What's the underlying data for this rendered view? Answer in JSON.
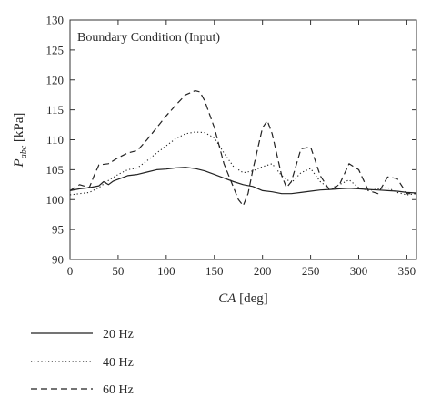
{
  "chart_data": {
    "type": "line",
    "annotation": "Boundary Condition (Input)",
    "xlabel": "CA [deg]",
    "xlabel_italic": "CA",
    "xlabel_unit": " [deg]",
    "ylabel": "P_abc [kPa]",
    "ylabel_main": "P",
    "ylabel_sub": "abc",
    "ylabel_unit": " [kPa]",
    "xlim": [
      0,
      360
    ],
    "ylim": [
      90,
      130
    ],
    "xticks": [
      "0",
      "50",
      "100",
      "150",
      "200",
      "250",
      "300",
      "350"
    ],
    "xtick_values": [
      0,
      50,
      100,
      150,
      200,
      250,
      300,
      350
    ],
    "yticks": [
      "90",
      "95",
      "100",
      "105",
      "110",
      "115",
      "120",
      "125",
      "130"
    ],
    "ytick_values": [
      90,
      95,
      100,
      105,
      110,
      115,
      120,
      125,
      130
    ],
    "grid": false,
    "legend_position": "below plot",
    "series": [
      {
        "name": "20 Hz",
        "style": "solid",
        "x": [
          0,
          10,
          20,
          30,
          35,
          40,
          45,
          50,
          55,
          60,
          70,
          80,
          90,
          100,
          110,
          120,
          130,
          140,
          150,
          160,
          170,
          180,
          190,
          200,
          210,
          220,
          230,
          240,
          250,
          260,
          270,
          280,
          290,
          300,
          310,
          320,
          330,
          340,
          350,
          360
        ],
        "y": [
          101.5,
          101.8,
          102.0,
          102.3,
          103.0,
          102.5,
          103.1,
          103.4,
          103.7,
          104.0,
          104.2,
          104.6,
          105.0,
          105.1,
          105.3,
          105.4,
          105.2,
          104.8,
          104.2,
          103.6,
          103.0,
          102.5,
          102.2,
          101.5,
          101.3,
          101.0,
          101.0,
          101.2,
          101.4,
          101.6,
          101.7,
          101.8,
          101.9,
          101.8,
          101.7,
          101.6,
          101.5,
          101.4,
          101.2,
          101.1
        ]
      },
      {
        "name": "40 Hz",
        "style": "dotted",
        "x": [
          0,
          10,
          20,
          30,
          40,
          50,
          60,
          70,
          80,
          90,
          100,
          110,
          120,
          130,
          140,
          150,
          160,
          170,
          180,
          190,
          200,
          210,
          220,
          230,
          240,
          250,
          260,
          270,
          280,
          290,
          300,
          310,
          320,
          330,
          340,
          350,
          360
        ],
        "y": [
          100.8,
          101.0,
          101.2,
          102.0,
          103.2,
          104.2,
          105.0,
          105.3,
          106.5,
          107.8,
          109.0,
          110.2,
          111.0,
          111.3,
          111.2,
          110.3,
          107.8,
          105.5,
          104.5,
          104.8,
          105.5,
          106.0,
          104.0,
          102.8,
          104.5,
          105.2,
          103.0,
          101.8,
          102.5,
          103.3,
          102.0,
          101.5,
          101.8,
          102.0,
          101.2,
          100.8,
          101.0
        ]
      },
      {
        "name": "60 Hz",
        "style": "dashed",
        "x": [
          0,
          10,
          20,
          25,
          30,
          40,
          50,
          60,
          70,
          80,
          90,
          100,
          110,
          120,
          130,
          135,
          140,
          150,
          160,
          170,
          175,
          180,
          185,
          190,
          200,
          205,
          210,
          220,
          225,
          230,
          240,
          250,
          260,
          270,
          280,
          290,
          300,
          310,
          320,
          330,
          340,
          350,
          360
        ],
        "y": [
          101.5,
          102.5,
          102.0,
          104.0,
          105.8,
          106.0,
          107.0,
          107.8,
          108.2,
          110.0,
          112.0,
          114.0,
          115.8,
          117.5,
          118.2,
          118.0,
          116.5,
          112.0,
          106.0,
          102.0,
          100.0,
          99.0,
          101.0,
          105.0,
          112.0,
          113.2,
          111.0,
          104.0,
          102.0,
          103.0,
          108.5,
          108.8,
          104.0,
          101.5,
          102.5,
          106.0,
          105.0,
          101.5,
          101.0,
          103.8,
          103.5,
          101.0,
          101.0
        ]
      }
    ]
  }
}
